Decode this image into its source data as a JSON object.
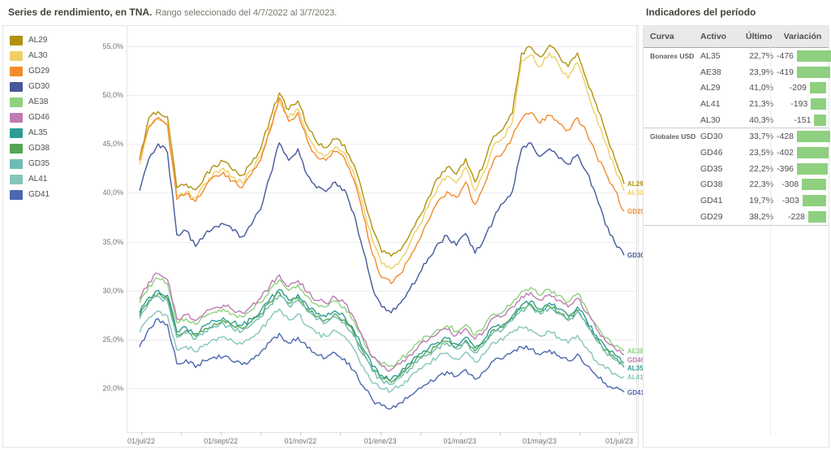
{
  "header": {
    "title": "Series de rendimiento, en TNA.",
    "subtitle": "Rango seleccionado del 4/7/2022 al 3/7/2023."
  },
  "indicator_panel": {
    "title": "Indicadores del período",
    "columns": [
      "Curva",
      "Activo",
      "Último",
      "Variación"
    ],
    "bar_color": "#8ed07f",
    "bar_scale_max": 476,
    "groups": [
      {
        "name": "Bonares USD",
        "rows": [
          {
            "activo": "AL35",
            "ultimo": "22,7%",
            "variacion": "-476"
          },
          {
            "activo": "AE38",
            "ultimo": "23,9%",
            "variacion": "-419"
          },
          {
            "activo": "AL29",
            "ultimo": "41,0%",
            "variacion": "-209"
          },
          {
            "activo": "AL41",
            "ultimo": "21,3%",
            "variacion": "-193"
          },
          {
            "activo": "AL30",
            "ultimo": "40,3%",
            "variacion": "-151"
          }
        ]
      },
      {
        "name": "Globales USD",
        "rows": [
          {
            "activo": "GD30",
            "ultimo": "33,7%",
            "variacion": "-428"
          },
          {
            "activo": "GD46",
            "ultimo": "23,5%",
            "variacion": "-402"
          },
          {
            "activo": "GD35",
            "ultimo": "22,2%",
            "variacion": "-396"
          },
          {
            "activo": "GD38",
            "ultimo": "22,3%",
            "variacion": "-308"
          },
          {
            "activo": "GD41",
            "ultimo": "19,7%",
            "variacion": "-303"
          },
          {
            "activo": "GD29",
            "ultimo": "38,2%",
            "variacion": "-228"
          }
        ]
      }
    ]
  },
  "chart_data": {
    "type": "line",
    "title": "Series de rendimiento, en TNA.",
    "x_unit": "weekly samples from 4/7/2022 to 3/7/2023",
    "x_labels": [
      "01/jul/22",
      "01/sept/22",
      "01/nov/22",
      "01/ene/23",
      "01/mar/23",
      "01/may/23",
      "01/jul/23"
    ],
    "y_tick_labels": [
      "55,0%",
      "50,0%",
      "45,0%",
      "40,0%",
      "35,0%",
      "30,0%",
      "25,0%",
      "20,0%"
    ],
    "y_ticks": [
      55,
      50,
      45,
      40,
      35,
      30,
      25,
      20
    ],
    "ylim": [
      16,
      57
    ],
    "grid": true,
    "legend_position": "left",
    "series": [
      {
        "name": "AL29",
        "color": "#b0920f",
        "end_label": true,
        "values": [
          43.5,
          47.8,
          48.4,
          47.9,
          40.6,
          41.0,
          40.4,
          41.8,
          42.9,
          43.3,
          42.4,
          41.9,
          43.1,
          44.6,
          47.6,
          50.3,
          48.6,
          49.5,
          46.9,
          45.3,
          44.7,
          45.6,
          45.0,
          43.0,
          39.8,
          36.4,
          34.0,
          33.6,
          34.2,
          35.8,
          37.6,
          39.6,
          41.6,
          42.7,
          42.0,
          43.6,
          41.2,
          43.2,
          45.9,
          46.6,
          48.2,
          54.4,
          55.0,
          54.0,
          55.2,
          54.2,
          53.0,
          54.4,
          51.6,
          49.2,
          46.4,
          43.6,
          41.0
        ]
      },
      {
        "name": "AL30",
        "color": "#eed066",
        "end_label": true,
        "values": [
          43.0,
          47.0,
          47.6,
          47.2,
          39.8,
          40.2,
          39.6,
          41.0,
          42.2,
          42.6,
          41.7,
          41.1,
          42.4,
          43.8,
          46.8,
          49.6,
          47.8,
          48.7,
          46.0,
          44.4,
          43.9,
          44.8,
          44.2,
          42.1,
          38.8,
          35.2,
          32.8,
          32.3,
          33.2,
          34.9,
          36.7,
          38.7,
          40.7,
          41.8,
          41.1,
          42.7,
          40.3,
          42.3,
          45.0,
          45.7,
          47.3,
          53.6,
          54.2,
          53.0,
          54.4,
          53.2,
          51.8,
          53.4,
          50.6,
          48.0,
          45.2,
          42.6,
          40.3
        ]
      },
      {
        "name": "GD29",
        "color": "#f28b2d",
        "end_label": true,
        "values": [
          43.4,
          46.8,
          47.8,
          47.0,
          39.4,
          40.0,
          39.2,
          40.6,
          41.8,
          42.2,
          41.3,
          40.6,
          42.0,
          43.4,
          46.4,
          49.8,
          47.4,
          48.3,
          45.4,
          43.8,
          43.4,
          44.3,
          43.6,
          41.4,
          37.8,
          33.8,
          31.4,
          30.8,
          31.8,
          33.4,
          35.2,
          37.2,
          39.2,
          40.2,
          39.6,
          41.2,
          38.9,
          40.9,
          43.4,
          44.2,
          45.8,
          47.6,
          48.3,
          47.2,
          48.0,
          47.2,
          46.5,
          47.8,
          46.2,
          44.0,
          42.2,
          40.4,
          38.2
        ]
      },
      {
        "name": "GD30",
        "color": "#46589c",
        "end_label": true,
        "values": [
          40.3,
          43.6,
          45.1,
          44.2,
          35.8,
          36.2,
          34.6,
          35.8,
          36.6,
          36.9,
          36.2,
          35.6,
          36.8,
          38.4,
          41.8,
          45.2,
          43.4,
          44.6,
          41.9,
          40.6,
          40.2,
          41.2,
          40.4,
          38.0,
          34.2,
          30.4,
          28.4,
          27.8,
          28.8,
          30.2,
          31.8,
          33.4,
          34.9,
          35.7,
          34.7,
          35.9,
          33.9,
          35.4,
          37.4,
          39.0,
          40.2,
          44.6,
          45.2,
          43.8,
          44.6,
          43.6,
          43.0,
          44.0,
          42.2,
          39.8,
          36.8,
          35.0,
          33.7
        ]
      },
      {
        "name": "AE38",
        "color": "#8fd17e",
        "end_label": true,
        "values": [
          28.8,
          30.6,
          31.3,
          30.8,
          26.8,
          27.2,
          26.6,
          27.4,
          27.9,
          28.2,
          27.7,
          27.4,
          28.1,
          28.9,
          30.2,
          31.2,
          30.1,
          30.7,
          29.5,
          28.7,
          28.4,
          29.0,
          28.4,
          27.0,
          25.0,
          23.2,
          22.6,
          22.4,
          23.0,
          23.9,
          24.9,
          25.4,
          26.1,
          26.5,
          25.9,
          26.6,
          25.5,
          26.4,
          27.7,
          27.9,
          28.8,
          30.0,
          30.4,
          29.6,
          30.2,
          29.6,
          28.9,
          29.8,
          28.2,
          26.6,
          25.2,
          24.4,
          23.9
        ]
      },
      {
        "name": "GD46",
        "color": "#bd7cb4",
        "end_label": true,
        "values": [
          29.2,
          31.0,
          31.8,
          31.2,
          27.2,
          27.6,
          27.0,
          27.8,
          28.3,
          28.6,
          28.1,
          27.8,
          28.5,
          29.3,
          30.6,
          31.7,
          30.5,
          31.1,
          29.9,
          29.1,
          28.8,
          29.4,
          28.8,
          27.3,
          25.2,
          23.3,
          22.3,
          22.0,
          22.6,
          23.5,
          24.5,
          25.0,
          25.7,
          26.1,
          25.5,
          26.2,
          25.1,
          26.0,
          27.3,
          27.5,
          28.4,
          29.5,
          29.9,
          29.1,
          29.7,
          29.1,
          28.4,
          29.3,
          27.8,
          26.2,
          24.9,
          24.2,
          23.5
        ]
      },
      {
        "name": "AL35",
        "color": "#2e9d93",
        "end_label": true,
        "values": [
          27.8,
          29.4,
          30.1,
          29.6,
          25.9,
          26.3,
          25.7,
          26.5,
          27.0,
          27.3,
          26.8,
          26.5,
          27.2,
          28.0,
          29.2,
          30.2,
          29.1,
          29.7,
          28.5,
          27.7,
          27.4,
          28.0,
          27.4,
          26.0,
          24.1,
          22.3,
          21.4,
          21.0,
          21.7,
          22.6,
          23.6,
          24.1,
          24.8,
          25.2,
          24.6,
          25.3,
          24.2,
          25.1,
          26.4,
          26.6,
          27.5,
          28.6,
          29.0,
          28.2,
          28.8,
          28.2,
          27.5,
          28.4,
          27.0,
          25.5,
          24.3,
          23.5,
          22.7
        ]
      },
      {
        "name": "GD38",
        "color": "#54a554",
        "end_label": false,
        "values": [
          27.5,
          29.1,
          29.8,
          29.3,
          25.6,
          26.0,
          25.4,
          26.2,
          26.7,
          27.0,
          26.5,
          26.2,
          26.9,
          27.7,
          28.9,
          29.9,
          28.8,
          29.4,
          28.2,
          27.4,
          27.1,
          27.7,
          27.1,
          25.7,
          23.8,
          22.0,
          21.1,
          20.7,
          21.4,
          22.3,
          23.3,
          23.8,
          24.5,
          24.9,
          24.3,
          25.0,
          23.9,
          24.8,
          26.1,
          26.3,
          27.2,
          28.3,
          28.7,
          27.9,
          28.5,
          27.9,
          27.2,
          28.1,
          26.7,
          25.2,
          24.0,
          23.2,
          22.3
        ]
      },
      {
        "name": "GD35",
        "color": "#6fbcb4",
        "end_label": false,
        "values": [
          27.2,
          28.8,
          29.5,
          29.0,
          25.3,
          25.7,
          25.1,
          25.9,
          26.4,
          26.7,
          26.2,
          25.9,
          26.6,
          27.4,
          28.6,
          29.6,
          28.5,
          29.1,
          27.9,
          27.1,
          26.8,
          27.4,
          26.8,
          25.4,
          23.5,
          21.8,
          20.9,
          20.5,
          21.2,
          22.1,
          23.1,
          23.6,
          24.3,
          24.7,
          24.1,
          24.8,
          23.7,
          24.6,
          25.9,
          26.1,
          27.0,
          28.1,
          28.5,
          27.7,
          28.3,
          27.7,
          27.0,
          27.9,
          26.5,
          25.0,
          23.8,
          23.0,
          22.2
        ]
      },
      {
        "name": "AL41",
        "color": "#86c5bb",
        "end_label": true,
        "values": [
          25.8,
          27.3,
          28.0,
          27.5,
          24.0,
          24.4,
          23.8,
          24.6,
          25.1,
          25.4,
          24.9,
          24.6,
          25.3,
          26.1,
          27.2,
          28.2,
          27.1,
          27.7,
          26.5,
          25.7,
          25.4,
          26.0,
          25.4,
          24.1,
          22.3,
          20.6,
          20.0,
          19.8,
          20.4,
          21.2,
          22.1,
          22.6,
          23.3,
          23.7,
          23.1,
          23.8,
          22.8,
          23.6,
          24.8,
          25.0,
          25.8,
          26.3,
          26.1,
          25.4,
          25.9,
          25.3,
          24.7,
          25.5,
          24.2,
          22.9,
          22.1,
          21.6,
          21.3
        ]
      },
      {
        "name": "GD41",
        "color": "#4d67af",
        "end_label": true,
        "values": [
          24.3,
          26.2,
          27.2,
          26.6,
          22.6,
          23.0,
          22.2,
          22.9,
          23.3,
          23.3,
          22.8,
          22.5,
          23.1,
          23.8,
          24.8,
          25.7,
          24.7,
          25.3,
          24.2,
          23.5,
          23.2,
          23.7,
          23.1,
          21.9,
          20.3,
          18.9,
          18.3,
          18.0,
          18.6,
          19.3,
          20.1,
          20.6,
          21.3,
          21.8,
          21.3,
          22.0,
          21.0,
          21.8,
          22.9,
          23.1,
          23.8,
          24.3,
          24.1,
          23.5,
          24.0,
          23.4,
          22.9,
          23.6,
          22.4,
          21.4,
          20.6,
          20.1,
          19.7
        ]
      }
    ]
  }
}
